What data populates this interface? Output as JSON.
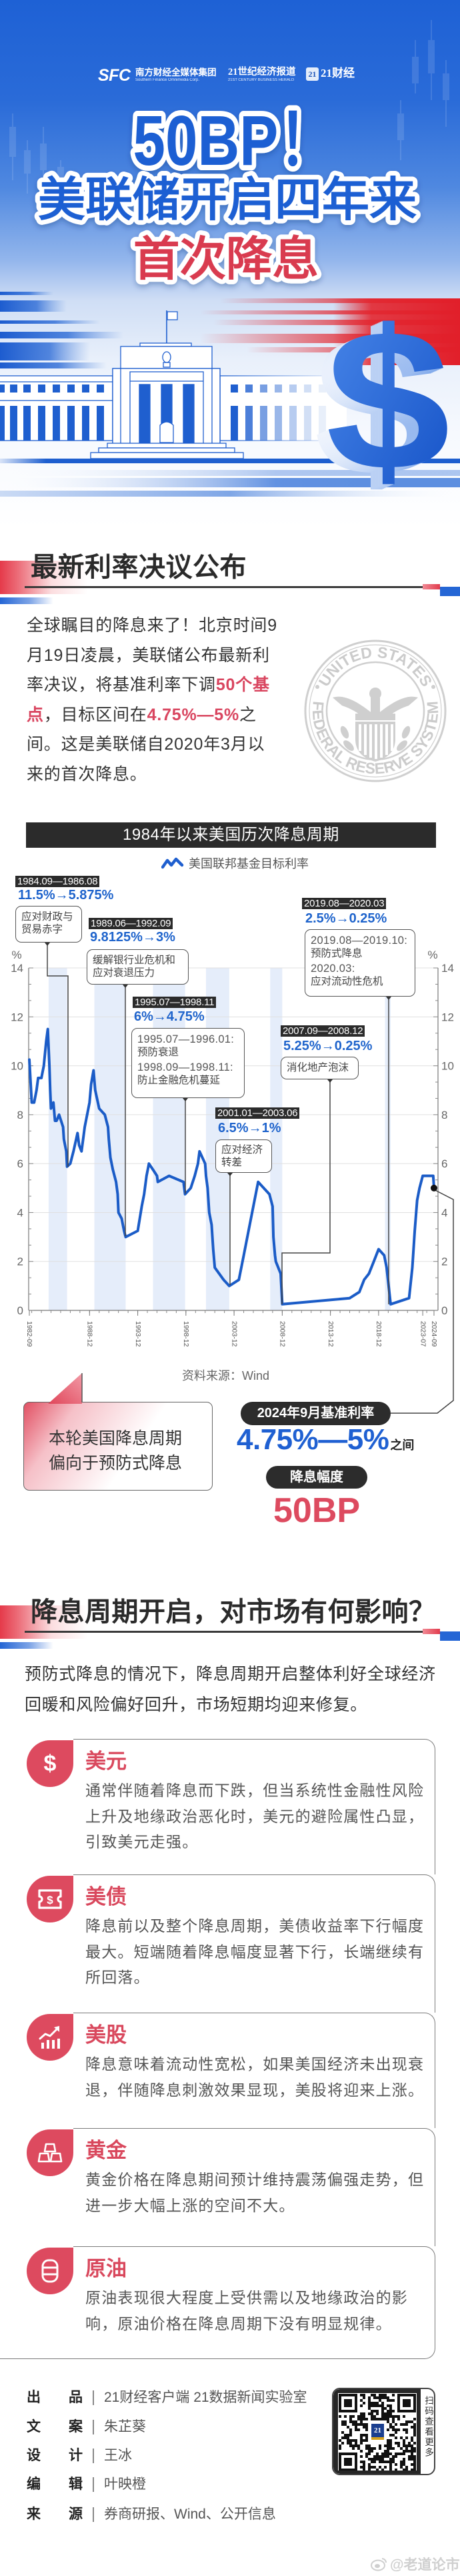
{
  "theme": {
    "primary_blue": "#1f60d2",
    "accent_red": "#dd4a5f",
    "headline_red": "#d93a4f",
    "dark": "#2b2b2b",
    "value_blue": "#1f64cc",
    "line_blue": "#1b5cc7",
    "band_blue": "#e5edfa"
  },
  "header": {
    "logos": {
      "sfc_mark": "SFC",
      "sfc_name": "南方财经全媒体集团",
      "sfc_en": "Southern Finance Omnimedia Corp.",
      "herald_name": "21世纪经济报道",
      "herald_en": "21ST CENTURY BUSINESS HERALD",
      "app_badge": "21",
      "app_name": "21财经"
    },
    "headline": "50BP！",
    "subheadline": "美联储开启四年来",
    "subheadline_red": "首次降息",
    "currency_symbol": "$"
  },
  "section1": {
    "heading": "最新利率决议公布",
    "lines": [
      [
        "全球瞩目的降息来了！北京时间9"
      ],
      [
        "月19日凌晨，美联储公布最新利"
      ],
      [
        "率决议，将基准利率下调",
        "50个基"
      ],
      [
        "点",
        "，目标区间在",
        "4.75%—5%",
        "之"
      ],
      [
        "间。这是美联储自2020年3月以"
      ],
      [
        "来的首次降息。"
      ]
    ],
    "highlights": [
      "50个基点",
      "4.75%—5%"
    ],
    "seal": {
      "top_text": "UNITED STATES",
      "bottom_text": "FEDERAL RESERVE SYSTEM"
    }
  },
  "chart_data": {
    "type": "line",
    "title": "1984年以来美国历次降息周期",
    "legend": [
      "美国联邦基金目标利率"
    ],
    "xlabel": "",
    "ylabel": "%",
    "ylim": [
      0,
      14
    ],
    "yticks": [
      0,
      2,
      4,
      6,
      8,
      10,
      12,
      14
    ],
    "xlim": [
      "1982-09",
      "2024-09"
    ],
    "xticks": [
      "1982-09",
      "1988-12",
      "1993-12",
      "1998-12",
      "2003-12",
      "2008-12",
      "2013-12",
      "2018-12",
      "2023-07",
      "2024-09"
    ],
    "grid": true,
    "dual_y_axis": true,
    "series": [
      {
        "name": "美国联邦基金目标利率",
        "points": [
          [
            "1982-09",
            10.25
          ],
          [
            "1982-12",
            8.5
          ],
          [
            "1983-03",
            8.5
          ],
          [
            "1983-06",
            9.0
          ],
          [
            "1983-08",
            9.5
          ],
          [
            "1983-12",
            9.5
          ],
          [
            "1984-03",
            10.0
          ],
          [
            "1984-06",
            11.0
          ],
          [
            "1984-08",
            11.5
          ],
          [
            "1984-10",
            10.0
          ],
          [
            "1984-11",
            9.0
          ],
          [
            "1984-12",
            8.25
          ],
          [
            "1985-03",
            8.5
          ],
          [
            "1985-05",
            7.75
          ],
          [
            "1985-07",
            7.75
          ],
          [
            "1985-10",
            8.0
          ],
          [
            "1986-03",
            7.5
          ],
          [
            "1986-04",
            7.0
          ],
          [
            "1986-07",
            6.5
          ],
          [
            "1986-08",
            5.875
          ],
          [
            "1986-12",
            6.0
          ],
          [
            "1987-04",
            6.5
          ],
          [
            "1987-09",
            7.25
          ],
          [
            "1987-11",
            6.75
          ],
          [
            "1988-02",
            6.5
          ],
          [
            "1988-06",
            7.5
          ],
          [
            "1988-12",
            8.5
          ],
          [
            "1989-02",
            9.25
          ],
          [
            "1989-05",
            9.8125
          ],
          [
            "1989-07",
            9.0
          ],
          [
            "1989-12",
            8.25
          ],
          [
            "1990-07",
            8.0
          ],
          [
            "1990-11",
            7.5
          ],
          [
            "1990-12",
            7.0
          ],
          [
            "1991-02",
            6.25
          ],
          [
            "1991-05",
            5.75
          ],
          [
            "1991-09",
            5.25
          ],
          [
            "1991-11",
            4.75
          ],
          [
            "1991-12",
            4.0
          ],
          [
            "1992-04",
            3.75
          ],
          [
            "1992-07",
            3.25
          ],
          [
            "1992-09",
            3.0
          ],
          [
            "1993-12",
            3.25
          ],
          [
            "1994-05",
            4.25
          ],
          [
            "1994-08",
            4.75
          ],
          [
            "1994-11",
            5.5
          ],
          [
            "1995-02",
            6.0
          ],
          [
            "1995-07",
            5.75
          ],
          [
            "1995-12",
            5.5
          ],
          [
            "1996-01",
            5.25
          ],
          [
            "1997-03",
            5.5
          ],
          [
            "1998-09",
            5.25
          ],
          [
            "1998-11",
            4.75
          ],
          [
            "1999-06",
            5.0
          ],
          [
            "1999-11",
            5.5
          ],
          [
            "2000-03",
            6.0
          ],
          [
            "2000-05",
            6.5
          ],
          [
            "2000-12",
            6.0
          ],
          [
            "2001-01",
            5.5
          ],
          [
            "2001-03",
            5.0
          ],
          [
            "2001-05",
            4.0
          ],
          [
            "2001-08",
            3.5
          ],
          [
            "2001-10",
            2.5
          ],
          [
            "2001-12",
            1.75
          ],
          [
            "2002-11",
            1.25
          ],
          [
            "2003-06",
            1.0
          ],
          [
            "2004-06",
            1.25
          ],
          [
            "2004-12",
            2.25
          ],
          [
            "2005-06",
            3.25
          ],
          [
            "2005-12",
            4.25
          ],
          [
            "2006-06",
            5.25
          ],
          [
            "2007-08",
            4.75
          ],
          [
            "2007-10",
            4.5
          ],
          [
            "2007-12",
            4.25
          ],
          [
            "2008-01",
            3.0
          ],
          [
            "2008-03",
            2.25
          ],
          [
            "2008-04",
            2.0
          ],
          [
            "2008-10",
            1.5
          ],
          [
            "2008-12",
            0.25
          ],
          [
            "2015-12",
            0.5
          ],
          [
            "2016-12",
            0.75
          ],
          [
            "2017-06",
            1.25
          ],
          [
            "2017-12",
            1.5
          ],
          [
            "2018-06",
            2.0
          ],
          [
            "2018-12",
            2.5
          ],
          [
            "2019-07",
            2.25
          ],
          [
            "2019-10",
            1.75
          ],
          [
            "2020-03",
            0.25
          ],
          [
            "2022-02",
            0.5
          ],
          [
            "2022-06",
            1.75
          ],
          [
            "2022-09",
            3.25
          ],
          [
            "2022-12",
            4.5
          ],
          [
            "2023-03",
            5.0
          ],
          [
            "2023-05",
            5.25
          ],
          [
            "2023-07",
            5.5
          ],
          [
            "2024-08",
            5.5
          ],
          [
            "2024-09",
            5.0
          ]
        ]
      }
    ],
    "shaded_periods": [
      {
        "start": "1984-09",
        "end": "1986-08"
      },
      {
        "start": "1989-06",
        "end": "1992-09"
      },
      {
        "start": "1995-07",
        "end": "1998-11"
      },
      {
        "start": "2001-01",
        "end": "2003-06"
      },
      {
        "start": "2007-09",
        "end": "2008-12"
      },
      {
        "start": "2019-08",
        "end": "2020-03"
      }
    ],
    "annotations": [
      {
        "period": "1984.09—1986.08",
        "change": "11.5%→5.875%",
        "from": 11.5,
        "to": 5.875,
        "notes": [
          "应对财政与",
          "贸易赤字"
        ]
      },
      {
        "period": "1989.06—1992.09",
        "change": "9.8125%→3%",
        "from": 9.8125,
        "to": 3,
        "notes": [
          "缓解银行业危机和",
          "应对衰退压力"
        ]
      },
      {
        "period": "1995.07—1998.11",
        "change": "6%→4.75%",
        "from": 6,
        "to": 4.75,
        "notes": [
          "1995.07—1996.01:",
          "预防衰退",
          "1998.09—1998.11:",
          "防止金融危机蔓延"
        ]
      },
      {
        "period": "2001.01—2003.06",
        "change": "6.5%→1%",
        "from": 6.5,
        "to": 1,
        "notes": [
          "应对经济",
          "转差"
        ]
      },
      {
        "period": "2007.09—2008.12",
        "change": "5.25%→0.25%",
        "from": 5.25,
        "to": 0.25,
        "notes": [
          "消化地产泡沫"
        ]
      },
      {
        "period": "2019.08—2020.03",
        "change": "2.5%→0.25%",
        "from": 2.5,
        "to": 0.25,
        "notes": [
          "2019.08—2019.10:",
          "预防式降息",
          "2020.03:",
          "应对流动性危机"
        ]
      }
    ],
    "highlight_point": {
      "date": "2024-09",
      "value": 5.0
    },
    "source": "资料来源：Wind"
  },
  "summary": {
    "bubble_lines": [
      "本轮美国降息周期",
      "偏向于预防式降息"
    ],
    "rate_label": "2024年9月基准利率",
    "rate_value": "4.75%—5%",
    "rate_suffix": "之间",
    "cut_label": "降息幅度",
    "cut_value": "50BP"
  },
  "section2": {
    "heading": "降息周期开启，对市场有何影响？",
    "lines": [
      "预防式降息的情况下，降息周期开启整体利好全球经济",
      "回暖和风险偏好回升，市场短期均迎来修复。"
    ],
    "cards": [
      {
        "icon": "dollar-icon",
        "glyph": "$",
        "title": "美元",
        "lines": [
          "通常伴随着降息而下跌，但当系统性金融性风险",
          "上升及地缘政治恶化时，美元的避险属性凸显，",
          "引致美元走强。"
        ]
      },
      {
        "icon": "bond-icon",
        "glyph": "$",
        "title": "美债",
        "lines": [
          "降息前以及整个降息周期，美债收益率下行幅度",
          "最大。短端随着降息幅度显著下行，长端继续有",
          "所回落。"
        ]
      },
      {
        "icon": "stock-chart-icon",
        "title": "美股",
        "lines": [
          "降息意味着流动性宽松，如果美国经济未出现衰",
          "退，伴随降息刺激效果显现，美股将迎来上涨。"
        ]
      },
      {
        "icon": "gold-bars-icon",
        "title": "黄金",
        "lines": [
          "黄金价格在降息期间预计维持震荡偏强走势，但",
          "进一步大幅上涨的空间不大。"
        ]
      },
      {
        "icon": "oil-barrel-icon",
        "title": "原油",
        "lines": [
          "原油表现很大程度上受供需以及地缘政治的影",
          "响，原油价格在降息周期下没有明显规律。"
        ]
      }
    ]
  },
  "credits": {
    "rows": [
      {
        "label": "出品",
        "value": "21财经客户端 21数据新闻实验室"
      },
      {
        "label": "文案",
        "value": "朱芷葵"
      },
      {
        "label": "设计",
        "value": "王冰"
      },
      {
        "label": "编辑",
        "value": "叶映橙"
      },
      {
        "label": "来源",
        "value": "券商研报、Wind、公开信息"
      }
    ]
  },
  "qr": {
    "center_badge": "21",
    "side_text": "扫码查看更多"
  },
  "watermark": "@老道论市V"
}
